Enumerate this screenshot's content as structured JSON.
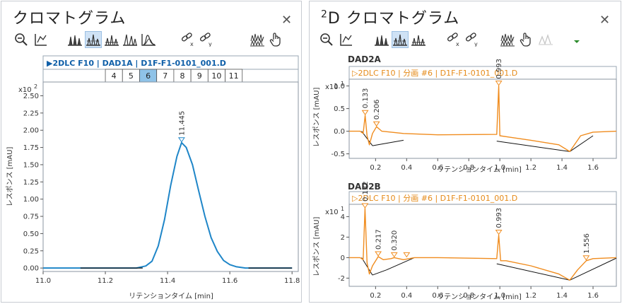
{
  "left_panel": {
    "title": "クロマトグラム",
    "close_label": "✕",
    "toolbar_icons": [
      "zoom-out",
      "axis-link",
      "peak-fill-1",
      "peak-fill-2",
      "peak-fill-3",
      "peak-fill-4",
      "peak-fill-5",
      "unlink-x",
      "unlink-y",
      "stacked",
      "hand"
    ],
    "signal_label": "▶2DLC F10 | DAD1A | D1F-F1-0101_001.D",
    "fraction_numbers": [
      "4",
      "5",
      "6",
      "7",
      "8",
      "9",
      "10",
      "11"
    ],
    "selected_fraction": "6",
    "multiplier": "x10",
    "multiplier_exp": "2",
    "peak_label": "11.445"
  },
  "right_panel": {
    "title_sup": "2",
    "title": "D クロマトグラム",
    "close_label": "✕",
    "toolbar_icons": [
      "zoom-out",
      "axis-link",
      "peak-fill-1",
      "peak-fill-2",
      "peak-fill-3",
      "unlink-x",
      "unlink-y",
      "stacked",
      "hand",
      "peak-disabled",
      "dropdown"
    ],
    "plots": [
      {
        "section": "DAD2A",
        "signal_label": "▷2DLC F10 | 分画 #6 | D1F-F1-0101_001.D",
        "multiplier": "x10",
        "multiplier_exp": "1",
        "peak_labels": [
          "0.133",
          "0.206",
          "0.993"
        ]
      },
      {
        "section": "DAD2B",
        "signal_label": "▷2DLC F10 | 分画 #6 | D1F-F1-0101_001.D",
        "multiplier": "x10",
        "multiplier_exp": "1",
        "peak_labels": [
          "0.132",
          "0.217",
          "0.320",
          "0.993",
          "1.556"
        ]
      }
    ]
  },
  "colors": {
    "blue_trace": "#1f86c8",
    "orange_trace": "#f08c1e",
    "fraction_fill": "#e6f1fa",
    "fraction_selected": "#9fcdec"
  },
  "chart_data": [
    {
      "type": "line",
      "title": "",
      "xlabel": "リテンションタイム [min]",
      "ylabel": "レスポンス [mAU]",
      "x_ticks": [
        "11.0",
        "11.2",
        "11.4",
        "11.6",
        "11.8"
      ],
      "y_ticks": [
        "0.00",
        "0.25",
        "0.50",
        "0.75",
        "1.00",
        "1.25",
        "1.50",
        "1.75",
        "2.00",
        "2.25",
        "2.50"
      ],
      "xlim": [
        11.0,
        11.82
      ],
      "ylim": [
        -0.05,
        2.7
      ],
      "y_scale_note": "x10^2",
      "fractions": [
        {
          "label": "4",
          "x0": 11.2,
          "x1": 11.255
        },
        {
          "label": "5",
          "x0": 11.255,
          "x1": 11.31
        },
        {
          "label": "6",
          "x0": 11.31,
          "x1": 11.365
        },
        {
          "label": "7",
          "x0": 11.365,
          "x1": 11.42
        },
        {
          "label": "8",
          "x0": 11.42,
          "x1": 11.475
        },
        {
          "label": "9",
          "x0": 11.475,
          "x1": 11.53
        },
        {
          "label": "10",
          "x0": 11.53,
          "x1": 11.585
        },
        {
          "label": "11",
          "x0": 11.585,
          "x1": 11.64
        }
      ],
      "series": [
        {
          "name": "DAD1A",
          "x": [
            11.0,
            11.3,
            11.33,
            11.35,
            11.37,
            11.39,
            11.41,
            11.43,
            11.445,
            11.46,
            11.48,
            11.5,
            11.52,
            11.54,
            11.56,
            11.58,
            11.6,
            11.62,
            11.65,
            11.8
          ],
          "y": [
            0.0,
            0.0,
            0.03,
            0.1,
            0.32,
            0.7,
            1.2,
            1.62,
            1.82,
            1.75,
            1.5,
            1.12,
            0.75,
            0.44,
            0.24,
            0.11,
            0.05,
            0.02,
            0.0,
            0.0
          ]
        }
      ],
      "peaks": [
        {
          "x": 11.445,
          "y": 1.82,
          "label": "11.445"
        }
      ]
    },
    {
      "type": "line",
      "section": "DAD2A",
      "xlabel": "リテンションタイム [min]",
      "ylabel": "レスポンス [mAU]",
      "x_ticks": [
        "0.2",
        "0.4",
        "0.6",
        "0.8",
        "1.0",
        "1.2",
        "1.4",
        "1.6"
      ],
      "y_ticks": [
        "-0.5",
        "0.0",
        "0.5",
        "1.0"
      ],
      "xlim": [
        0.03,
        1.75
      ],
      "ylim": [
        -0.6,
        1.15
      ],
      "y_scale_note": "x10^1",
      "series": [
        {
          "name": "DAD2A",
          "x": [
            0.03,
            0.1,
            0.12,
            0.133,
            0.145,
            0.16,
            0.18,
            0.206,
            0.24,
            0.3,
            0.38,
            0.6,
            0.98,
            0.993,
            1.0,
            1.04,
            1.2,
            1.38,
            1.45,
            1.47,
            1.52,
            1.6,
            1.75
          ],
          "y": [
            0.0,
            0.0,
            -0.05,
            0.35,
            -0.1,
            -0.3,
            -0.05,
            0.1,
            0.0,
            -0.02,
            -0.05,
            -0.08,
            -0.07,
            1.0,
            -0.1,
            -0.12,
            -0.2,
            -0.3,
            -0.45,
            -0.35,
            -0.1,
            -0.02,
            0.0
          ]
        }
      ],
      "peaks": [
        {
          "x": 0.133,
          "y": 0.35,
          "label": "0.133"
        },
        {
          "x": 0.206,
          "y": 0.1,
          "label": "0.206"
        },
        {
          "x": 0.993,
          "y": 1.0,
          "label": "0.993"
        }
      ],
      "baselines": [
        [
          0.11,
          0.0,
          0.18,
          -0.32
        ],
        [
          0.18,
          -0.32,
          0.38,
          -0.2
        ],
        [
          0.98,
          -0.22,
          1.45,
          -0.45
        ],
        [
          1.45,
          -0.45,
          1.6,
          -0.1
        ]
      ]
    },
    {
      "type": "line",
      "section": "DAD2B",
      "xlabel": "リテンションタイム [min]",
      "ylabel": "レスポンス [mAU]",
      "x_ticks": [
        "0.2",
        "0.4",
        "0.6",
        "0.8",
        "1.0",
        "1.2",
        "1.4",
        "1.6"
      ],
      "y_ticks": [
        "-2",
        "0",
        "2",
        "4"
      ],
      "xlim": [
        0.03,
        1.75
      ],
      "ylim": [
        -2.8,
        5.2
      ],
      "y_scale_note": "x10^1",
      "series": [
        {
          "name": "DAD2B",
          "x": [
            0.03,
            0.1,
            0.12,
            0.132,
            0.145,
            0.16,
            0.18,
            0.217,
            0.25,
            0.3,
            0.32,
            0.38,
            0.45,
            0.6,
            0.98,
            0.993,
            1.005,
            1.04,
            1.2,
            1.38,
            1.45,
            1.5,
            1.556,
            1.6,
            1.75
          ],
          "y": [
            0.0,
            0.0,
            -0.2,
            4.8,
            -0.5,
            -1.6,
            -0.8,
            0.1,
            -0.2,
            -0.1,
            0.0,
            -0.2,
            0.0,
            0.0,
            -0.1,
            2.2,
            -0.3,
            -0.3,
            -0.8,
            -1.6,
            -2.2,
            -1.2,
            -0.3,
            -0.1,
            0.0
          ]
        }
      ],
      "peaks": [
        {
          "x": 0.132,
          "y": 4.8,
          "label": "0.132"
        },
        {
          "x": 0.217,
          "y": 0.1,
          "label": "0.217"
        },
        {
          "x": 0.32,
          "y": 0.0,
          "label": "0.320"
        },
        {
          "x": 0.4,
          "y": 0.0,
          "label": ""
        },
        {
          "x": 0.993,
          "y": 2.2,
          "label": "0.993"
        },
        {
          "x": 1.556,
          "y": -0.3,
          "label": "1.556"
        }
      ],
      "baselines": [
        [
          0.11,
          0.0,
          0.18,
          -1.7
        ],
        [
          0.18,
          -1.7,
          0.27,
          -1.2
        ],
        [
          0.27,
          -1.2,
          0.45,
          0.0
        ],
        [
          0.98,
          -0.6,
          1.45,
          -2.2
        ],
        [
          1.45,
          -2.2,
          1.75,
          -0.05
        ]
      ]
    }
  ]
}
